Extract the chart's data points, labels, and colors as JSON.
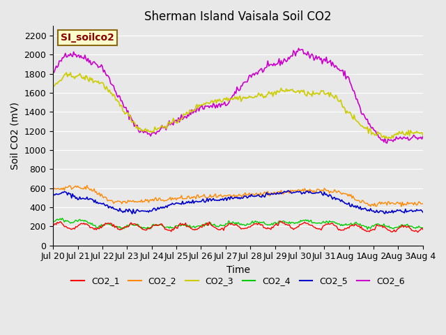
{
  "title": "Sherman Island Vaisala Soil CO2",
  "ylabel": "Soil CO2 (mV)",
  "xlabel": "Time",
  "annotation": "SI_soilco2",
  "ylim": [
    0,
    2300
  ],
  "yticks": [
    0,
    200,
    400,
    600,
    800,
    1000,
    1200,
    1400,
    1600,
    1800,
    2000,
    2200
  ],
  "background_color": "#e8e8e8",
  "colors": {
    "CO2_1": "#ff0000",
    "CO2_2": "#ff8800",
    "CO2_3": "#cccc00",
    "CO2_4": "#00cc00",
    "CO2_5": "#0000cc",
    "CO2_6": "#cc00cc"
  },
  "n_points": 361,
  "xtick_positions": [
    0,
    24,
    48,
    72,
    96,
    120,
    144,
    168,
    192,
    216,
    240,
    264,
    288,
    312,
    336,
    360
  ],
  "xtick_labels": [
    "Jul 20",
    "Jul 21",
    "Jul 22",
    "Jul 23",
    "Jul 24",
    "Jul 25",
    "Jul 26",
    "Jul 27",
    "Jul 28",
    "Jul 29",
    "Jul 30",
    "Jul 31",
    "Aug 1",
    "Aug 2",
    "Aug 3",
    "Aug 4"
  ]
}
